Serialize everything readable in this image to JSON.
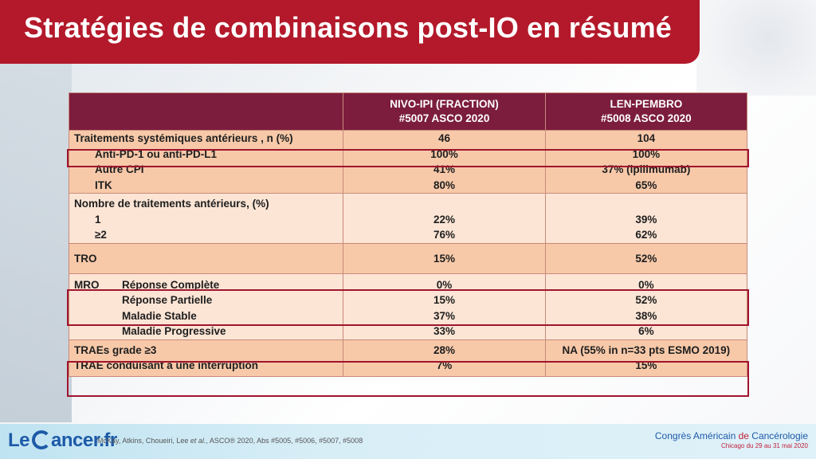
{
  "title": "Stratégies de combinaisons post-IO en résumé",
  "table": {
    "header": {
      "col1": "",
      "col2_line1": "NIVO-IPI (FRACTION)",
      "col2_line2": "#5007 ASCO 2020",
      "col3_line1": "LEN-PEMBRO",
      "col3_line2": "#5008 ASCO 2020"
    },
    "rows": {
      "prior": {
        "label": "Traitements systémiques antérieurs , n (%)",
        "c2": "46",
        "c3": "104"
      },
      "anti_pd1": {
        "label": "Anti-PD-1 ou anti-PD-L1",
        "c2": "100%",
        "c3": "100%"
      },
      "autre_cpi": {
        "label": "Autre CPI",
        "c2": "41%",
        "c3": "37% (ipilimumab)"
      },
      "itk": {
        "label": "ITK",
        "c2": "80%",
        "c3": "65%"
      },
      "nombre": {
        "label": "Nombre de traitements antérieurs, (%)"
      },
      "n1": {
        "label": "1",
        "c2": "22%",
        "c3": "39%"
      },
      "n2": {
        "label": "≥2",
        "c2": "76%",
        "c3": "62%"
      },
      "tro": {
        "label": "TRO",
        "c2": "15%",
        "c3": "52%"
      },
      "mro": {
        "label": "MRO"
      },
      "rc": {
        "label": "Réponse Complète",
        "c2": "0%",
        "c3": "0%"
      },
      "rp": {
        "label": "Réponse Partielle",
        "c2": "15%",
        "c3": "52%"
      },
      "ms": {
        "label": "Maladie Stable",
        "c2": "37%",
        "c3": "38%"
      },
      "mp": {
        "label": "Maladie Progressive",
        "c2": "33%",
        "c3": "6%"
      },
      "traes": {
        "label": "TRAEs grade ≥3",
        "c2": "28%",
        "c3": "NA (55% in n=33 pts ESMO 2019)"
      },
      "interruption": {
        "label": "TRAE conduisant à une interruption",
        "c2": "7%",
        "c3": "15%"
      }
    }
  },
  "footer": {
    "logo_pre": "Le",
    "logo_post": "ancer.fr",
    "reference_pre": "McKay, Atkins, Choueiri, Lee ",
    "reference_etal": "et al.",
    "reference_post": ", ASCO® 2020, Abs #5005, #5006, #5007, #5008",
    "congress_pre": "Congrès Américain ",
    "congress_de": "de",
    "congress_post": " Cancérologie",
    "congress_dates": "Chicago du 29 au 31 mai 2020"
  },
  "colors": {
    "title_bar": "#b3192a",
    "header_bg": "#7c1d3e",
    "row_dark": "#f7c9a9",
    "row_light": "#fce5d5",
    "highlight": "#a0152d",
    "logo_blue": "#1d5aa8"
  }
}
